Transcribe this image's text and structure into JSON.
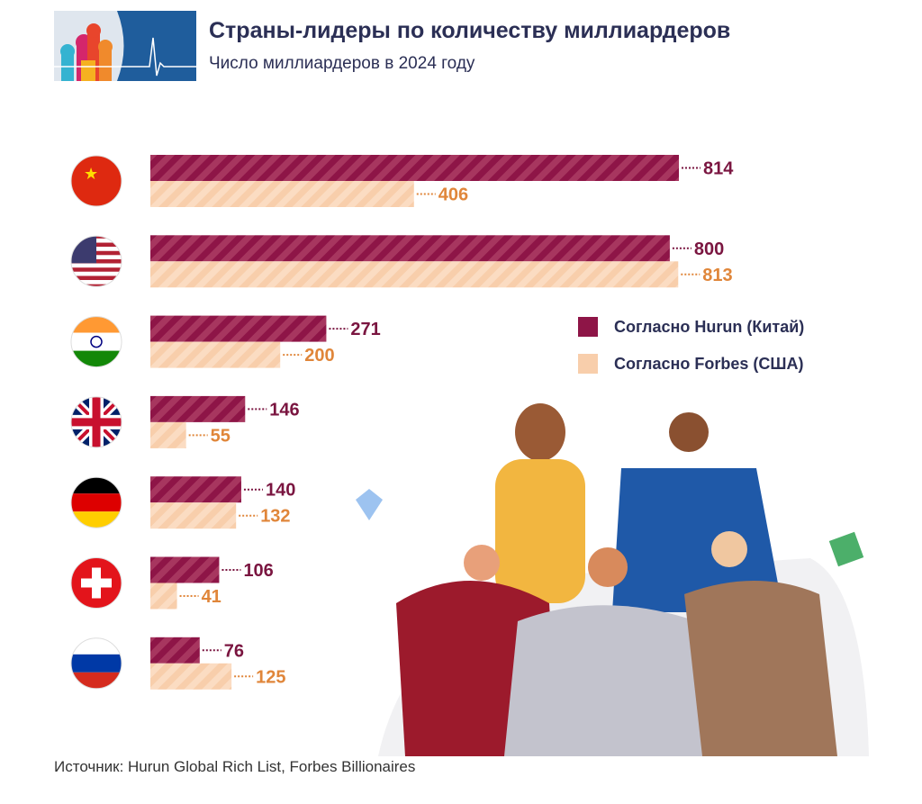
{
  "title": "Страны-лидеры по количеству миллиардеров",
  "subtitle": "Число миллиардеров в 2024 году",
  "source": "Источник: Hurun Global Rich List, Forbes Billionaires",
  "colors": {
    "hurun": "#8e1547",
    "forbes": "#f8ceab",
    "hurun_label": "#7a1540",
    "forbes_label": "#e0863a",
    "title": "#2b2f55"
  },
  "chart_data": {
    "type": "bar",
    "orientation": "horizontal",
    "categories": [
      "Китай",
      "США",
      "Индия",
      "Великобритания",
      "Германия",
      "Швейцария",
      "Россия"
    ],
    "category_icons": [
      "flag-china",
      "flag-usa",
      "flag-india",
      "flag-uk",
      "flag-germany",
      "flag-switzerland",
      "flag-russia"
    ],
    "series": [
      {
        "name": "Согласно Hurun (Китай)",
        "values": [
          814,
          800,
          271,
          146,
          140,
          106,
          76
        ]
      },
      {
        "name": "Согласно Forbes (США)",
        "values": [
          406,
          813,
          200,
          55,
          132,
          41,
          125
        ]
      }
    ],
    "xlim": [
      0,
      814
    ],
    "grid": false,
    "legend": "right",
    "data_labels": true
  }
}
